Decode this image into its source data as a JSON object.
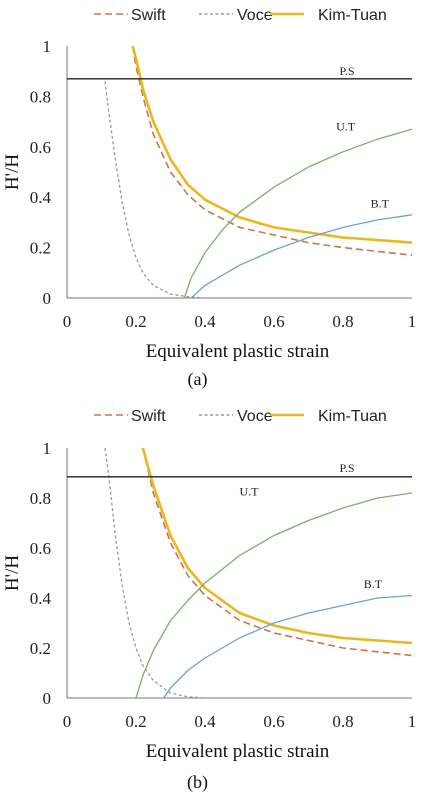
{
  "chart_data": [
    {
      "type": "line",
      "caption": "(a)",
      "xlabel": "Equivalent plastic strain",
      "ylabel": "H'/H",
      "xlim": [
        0,
        1
      ],
      "ylim": [
        0,
        1
      ],
      "xticks": [
        "0",
        "0.2",
        "0.4",
        "0.6",
        "0.8",
        "1"
      ],
      "yticks": [
        "0",
        "0.2",
        "0.4",
        "0.6",
        "0.8",
        "1"
      ],
      "legend_position": "top",
      "grid": false,
      "series": [
        {
          "name": "Swift",
          "color": "#C9764A",
          "dash": "dashed",
          "x": [
            0.19,
            0.2,
            0.22,
            0.25,
            0.3,
            0.35,
            0.4,
            0.5,
            0.6,
            0.7,
            0.8,
            0.9,
            1.0
          ],
          "y": [
            1.0,
            0.92,
            0.8,
            0.65,
            0.5,
            0.41,
            0.35,
            0.28,
            0.25,
            0.22,
            0.2,
            0.185,
            0.17
          ]
        },
        {
          "name": "Voce",
          "color": "#9A9A9A",
          "dash": "dotted",
          "x": [
            0.11,
            0.12,
            0.14,
            0.16,
            0.18,
            0.2,
            0.22,
            0.25,
            0.3,
            0.35,
            0.4
          ],
          "y": [
            0.86,
            0.75,
            0.55,
            0.38,
            0.25,
            0.16,
            0.1,
            0.05,
            0.015,
            0.005,
            0.0
          ]
        },
        {
          "name": "Kim-Tuan",
          "color": "#E8B820",
          "dash": "solid",
          "x": [
            0.19,
            0.2,
            0.22,
            0.25,
            0.3,
            0.35,
            0.4,
            0.5,
            0.6,
            0.7,
            0.8,
            0.9,
            1.0
          ],
          "y": [
            1.0,
            0.95,
            0.83,
            0.7,
            0.55,
            0.45,
            0.39,
            0.32,
            0.28,
            0.26,
            0.24,
            0.23,
            0.22
          ]
        },
        {
          "name": "U.T",
          "color": "#7BAF6A",
          "dash": "solid",
          "x": [
            0.34,
            0.36,
            0.4,
            0.45,
            0.5,
            0.6,
            0.7,
            0.8,
            0.9,
            1.0
          ],
          "y": [
            0.0,
            0.08,
            0.18,
            0.27,
            0.34,
            0.44,
            0.52,
            0.58,
            0.63,
            0.67
          ]
        },
        {
          "name": "B.T",
          "color": "#6BA3CF",
          "dash": "solid",
          "x": [
            0.36,
            0.4,
            0.5,
            0.6,
            0.7,
            0.8,
            0.9,
            1.0
          ],
          "y": [
            0.0,
            0.05,
            0.13,
            0.19,
            0.24,
            0.28,
            0.31,
            0.33
          ]
        },
        {
          "name": "P.S",
          "color": "#222222",
          "dash": "solid",
          "x": [
            0,
            1
          ],
          "y": [
            0.87,
            0.87
          ]
        }
      ],
      "annotations": [
        {
          "text": "P.S",
          "x": 0.79,
          "y": 0.885
        },
        {
          "text": "U.T",
          "x": 0.78,
          "y": 0.665
        },
        {
          "text": "B.T",
          "x": 0.88,
          "y": 0.36
        }
      ]
    },
    {
      "type": "line",
      "caption": "(b)",
      "xlabel": "Equivalent plastic strain",
      "ylabel": "H'/H",
      "xlim": [
        0,
        1
      ],
      "ylim": [
        0,
        1
      ],
      "xticks": [
        "0",
        "0.2",
        "0.4",
        "0.6",
        "0.8",
        "1"
      ],
      "yticks": [
        "0",
        "0.2",
        "0.4",
        "0.6",
        "0.8",
        "1"
      ],
      "legend_position": "top",
      "grid": false,
      "series": [
        {
          "name": "Swift",
          "color": "#C9764A",
          "dash": "dashed",
          "x": [
            0.22,
            0.25,
            0.3,
            0.35,
            0.4,
            0.5,
            0.6,
            0.7,
            0.8,
            0.9,
            1.0
          ],
          "y": [
            1.0,
            0.82,
            0.62,
            0.49,
            0.41,
            0.31,
            0.26,
            0.23,
            0.2,
            0.185,
            0.17
          ]
        },
        {
          "name": "Voce",
          "color": "#9A9A9A",
          "dash": "dotted",
          "x": [
            0.11,
            0.12,
            0.14,
            0.16,
            0.18,
            0.2,
            0.22,
            0.25,
            0.3,
            0.35,
            0.4
          ],
          "y": [
            1.0,
            0.9,
            0.65,
            0.45,
            0.3,
            0.2,
            0.13,
            0.07,
            0.02,
            0.005,
            0.0
          ]
        },
        {
          "name": "Kim-Tuan",
          "color": "#E8B820",
          "dash": "solid",
          "x": [
            0.22,
            0.25,
            0.3,
            0.35,
            0.4,
            0.5,
            0.6,
            0.7,
            0.8,
            0.9,
            1.0
          ],
          "y": [
            1.0,
            0.85,
            0.65,
            0.52,
            0.44,
            0.34,
            0.29,
            0.26,
            0.24,
            0.23,
            0.22
          ]
        },
        {
          "name": "U.T",
          "color": "#7BAF6A",
          "dash": "solid",
          "x": [
            0.2,
            0.22,
            0.25,
            0.3,
            0.35,
            0.4,
            0.5,
            0.6,
            0.7,
            0.8,
            0.9,
            1.0
          ],
          "y": [
            0.0,
            0.09,
            0.19,
            0.31,
            0.39,
            0.46,
            0.57,
            0.65,
            0.71,
            0.76,
            0.8,
            0.82
          ]
        },
        {
          "name": "B.T",
          "color": "#6BA3CF",
          "dash": "solid",
          "x": [
            0.28,
            0.3,
            0.35,
            0.4,
            0.5,
            0.6,
            0.7,
            0.8,
            0.9,
            1.0
          ],
          "y": [
            0.0,
            0.04,
            0.11,
            0.16,
            0.24,
            0.3,
            0.34,
            0.37,
            0.4,
            0.41
          ]
        },
        {
          "name": "P.S",
          "color": "#222222",
          "dash": "solid",
          "x": [
            0,
            1
          ],
          "y": [
            0.885,
            0.885
          ]
        }
      ],
      "annotations": [
        {
          "text": "P.S",
          "x": 0.79,
          "y": 0.905
        },
        {
          "text": "U.T",
          "x": 0.5,
          "y": 0.81
        },
        {
          "text": "B.T",
          "x": 0.86,
          "y": 0.44
        }
      ]
    }
  ]
}
